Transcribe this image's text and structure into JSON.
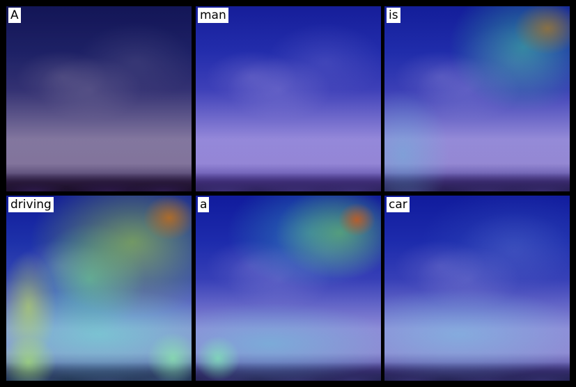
{
  "figure": {
    "panels": [
      {
        "word": "A",
        "attention_focus": "none"
      },
      {
        "word": "man",
        "attention_focus": "none"
      },
      {
        "word": "is",
        "attention_focus": "upper-right sky"
      },
      {
        "word": "driving",
        "attention_focus": "whole frame, upper-right and lower band"
      },
      {
        "word": "a",
        "attention_focus": "upper-right sky and lower-left"
      },
      {
        "word": "car",
        "attention_focus": "lower band"
      }
    ],
    "colors": {
      "background": "#000000",
      "label_background": "#ffffff",
      "label_text": "#000000"
    }
  }
}
